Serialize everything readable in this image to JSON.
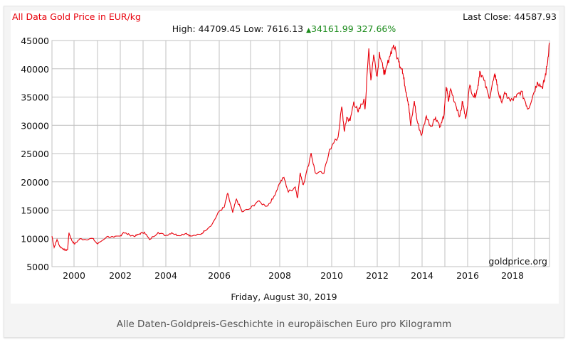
{
  "header": {
    "title": "All Data Gold Price in EUR/kg",
    "last_close": "Last Close: 44587.93",
    "high": "High: 44709.45",
    "low": "Low: 7616.13",
    "change": "34161.99 327.66%"
  },
  "watermark": "goldprice.org",
  "date_label": "Friday, August 30, 2019",
  "caption": "Alle Daten-Goldpreis-Geschichte in europäischen Euro pro Kilogramm",
  "colors": {
    "line": "#e8000b",
    "up": "#1a8a1a",
    "grid": "#c0c0c0"
  },
  "chart_data": {
    "type": "line",
    "title": "All Data Gold Price in EUR/kg",
    "xlabel": "",
    "ylabel": "EUR/kg",
    "ylim": [
      5000,
      45000
    ],
    "xlim": [
      1999.0,
      2019.67
    ],
    "yticks": [
      "5000",
      "10000",
      "15000",
      "20000",
      "25000",
      "30000",
      "35000",
      "40000",
      "45000"
    ],
    "xticks": [
      "2000",
      "2002",
      "2004",
      "2006",
      "2008",
      "2010",
      "2012",
      "2014",
      "2016",
      "2018"
    ],
    "grid": true,
    "series": [
      {
        "name": "Gold EUR/kg",
        "points": [
          [
            1999.0,
            10400
          ],
          [
            1999.1,
            8400
          ],
          [
            1999.23,
            9800
          ],
          [
            1999.35,
            8600
          ],
          [
            1999.48,
            8200
          ],
          [
            1999.61,
            7900
          ],
          [
            1999.71,
            8000
          ],
          [
            1999.77,
            11000
          ],
          [
            1999.9,
            9600
          ],
          [
            2000.03,
            9000
          ],
          [
            2000.24,
            9900
          ],
          [
            2000.48,
            9800
          ],
          [
            2000.79,
            10000
          ],
          [
            2001.0,
            9000
          ],
          [
            2001.41,
            10300
          ],
          [
            2001.72,
            10200
          ],
          [
            2002.0,
            10400
          ],
          [
            2002.13,
            11050
          ],
          [
            2002.41,
            10600
          ],
          [
            2002.66,
            10400
          ],
          [
            2002.84,
            10800
          ],
          [
            2003.06,
            11100
          ],
          [
            2003.28,
            9780
          ],
          [
            2003.66,
            11050
          ],
          [
            2004.0,
            10500
          ],
          [
            2004.24,
            11000
          ],
          [
            2004.5,
            10500
          ],
          [
            2004.85,
            10900
          ],
          [
            2005.02,
            10400
          ],
          [
            2005.37,
            10700
          ],
          [
            2005.49,
            11300
          ],
          [
            2005.76,
            12550
          ],
          [
            2006.0,
            14800
          ],
          [
            2006.16,
            15500
          ],
          [
            2006.27,
            17950
          ],
          [
            2006.43,
            14560
          ],
          [
            2006.55,
            16950
          ],
          [
            2006.73,
            14700
          ],
          [
            2007.0,
            15300
          ],
          [
            2007.24,
            16550
          ],
          [
            2007.56,
            15700
          ],
          [
            2007.76,
            16950
          ],
          [
            2008.0,
            19800
          ],
          [
            2008.15,
            20800
          ],
          [
            2008.31,
            18200
          ],
          [
            2008.56,
            19100
          ],
          [
            2008.64,
            17200
          ],
          [
            2008.74,
            21600
          ],
          [
            2008.85,
            19500
          ],
          [
            2009.15,
            25100
          ],
          [
            2009.32,
            21600
          ],
          [
            2009.68,
            21500
          ],
          [
            2009.91,
            25750
          ],
          [
            2010.28,
            27900
          ],
          [
            2010.44,
            33300
          ],
          [
            2010.56,
            28900
          ],
          [
            2010.66,
            31400
          ],
          [
            2010.81,
            30800
          ],
          [
            2010.97,
            34200
          ],
          [
            2011.16,
            32300
          ],
          [
            2011.41,
            34550
          ],
          [
            2011.47,
            33050
          ],
          [
            2011.63,
            43600
          ],
          [
            2011.72,
            37950
          ],
          [
            2011.84,
            42500
          ],
          [
            2012.0,
            38700
          ],
          [
            2012.1,
            43000
          ],
          [
            2012.26,
            40000
          ],
          [
            2012.35,
            39000
          ],
          [
            2012.55,
            42100
          ],
          [
            2012.74,
            44250
          ],
          [
            2012.97,
            41200
          ],
          [
            2013.13,
            40000
          ],
          [
            2013.19,
            38300
          ],
          [
            2013.31,
            35800
          ],
          [
            2013.41,
            33700
          ],
          [
            2013.5,
            29900
          ],
          [
            2013.66,
            34300
          ],
          [
            2013.78,
            30800
          ],
          [
            2013.97,
            28250
          ],
          [
            2014.19,
            31650
          ],
          [
            2014.38,
            29800
          ],
          [
            2014.59,
            31400
          ],
          [
            2014.81,
            29800
          ],
          [
            2014.97,
            32000
          ],
          [
            2015.06,
            36800
          ],
          [
            2015.16,
            34200
          ],
          [
            2015.25,
            36450
          ],
          [
            2015.47,
            33700
          ],
          [
            2015.66,
            31650
          ],
          [
            2015.78,
            34200
          ],
          [
            2015.91,
            31150
          ],
          [
            2016.1,
            37100
          ],
          [
            2016.29,
            34950
          ],
          [
            2016.45,
            36450
          ],
          [
            2016.55,
            39600
          ],
          [
            2016.74,
            37950
          ],
          [
            2016.97,
            34800
          ],
          [
            2017.16,
            37950
          ],
          [
            2017.25,
            38950
          ],
          [
            2017.38,
            35800
          ],
          [
            2017.5,
            34300
          ],
          [
            2017.69,
            35550
          ],
          [
            2017.91,
            34300
          ],
          [
            2018.16,
            34950
          ],
          [
            2018.39,
            36050
          ],
          [
            2018.58,
            34200
          ],
          [
            2018.71,
            32900
          ],
          [
            2018.97,
            35800
          ],
          [
            2019.13,
            37700
          ],
          [
            2019.35,
            36700
          ],
          [
            2019.45,
            37950
          ],
          [
            2019.58,
            40850
          ],
          [
            2019.67,
            44600
          ]
        ]
      }
    ]
  }
}
